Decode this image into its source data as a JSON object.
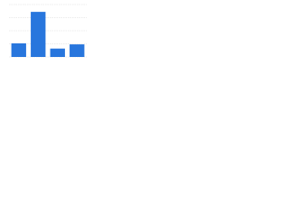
{
  "chart_data": {
    "type": "bar",
    "categories": [
      null,
      null,
      null,
      null
    ],
    "values": [
      26,
      86,
      16,
      24
    ],
    "color": "#2876dd",
    "ylim": [
      0,
      100
    ],
    "yticks": [
      0,
      25,
      50,
      75,
      100
    ],
    "grid": true
  }
}
